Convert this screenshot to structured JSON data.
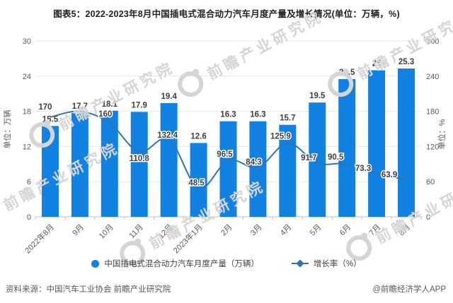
{
  "title": "图表5：2022-2023年8月中国插电式混合动力汽车月度产量及增长情况(单位：万辆，%)",
  "watermark": {
    "text": "前瞻产业研究院"
  },
  "legend": [
    {
      "label": "中国插电式混合动力汽车月度产量（万辆）",
      "marker": "circle"
    },
    {
      "label": "增长率（%）",
      "marker": "line-diamond"
    }
  ],
  "footer": {
    "source": "资料来源：中国汽车工业协会 前瞻产业研究院",
    "credit": "@前瞻经济学人APP"
  },
  "colors": {
    "bar": "#1181e2",
    "line": "#2e74b5",
    "data_label": "#404040",
    "axis_text": "#595959",
    "grid": "#e7e7e7",
    "axis_line": "#bfbfbf",
    "title": "#1f1f1f",
    "watermark": "#d5d5d5"
  },
  "chart_data": {
    "type": "bar+line",
    "title": "图表5：2022-2023年8月中国插电式混合动力汽车月度产量及增长情况(单位：万辆，%)",
    "categories": [
      "2022年8月",
      "9月",
      "10月",
      "11月",
      "12月",
      "2023年1月",
      "2月",
      "3月",
      "4月",
      "5月",
      "6月",
      "7月",
      "8月"
    ],
    "series": [
      {
        "name": "中国插电式混合动力汽车月度产量（万辆）",
        "type": "bar",
        "axis": "left",
        "values": [
          15.5,
          17.7,
          18.1,
          17.9,
          19.4,
          12.6,
          16.3,
          16.3,
          15.7,
          19.5,
          23.5,
          25,
          25.3
        ],
        "labels": [
          "15.5",
          "17.7",
          "18.1",
          "17.9",
          "19.4",
          "12.6",
          "16.3",
          "16.3",
          "15.7",
          "19.5",
          "23.5",
          "25",
          "25.3"
        ]
      },
      {
        "name": "增长率（%）",
        "type": "line",
        "axis": "right",
        "values": [
          170,
          180,
          160,
          110.8,
          132.4,
          48.5,
          96.5,
          84.3,
          125.9,
          91.7,
          90.5,
          73.3,
          63.9
        ],
        "labels": [
          "170",
          "",
          "160",
          "110.8",
          "132.4",
          "48.5",
          "96.5",
          "84.3",
          "125.9",
          "91.7",
          "90.5",
          "73.3",
          "63.9"
        ]
      }
    ],
    "left_axis": {
      "title": "单位：万辆",
      "min": 0,
      "max": 30,
      "ticks": [
        0,
        6,
        12,
        18,
        24,
        30
      ]
    },
    "right_axis": {
      "title": "单位：%",
      "min": 0,
      "max": 300,
      "ticks": [
        0,
        60,
        120,
        180,
        240,
        300
      ]
    },
    "x_label_rotation": -45,
    "grid": true,
    "legend_position": "bottom"
  }
}
